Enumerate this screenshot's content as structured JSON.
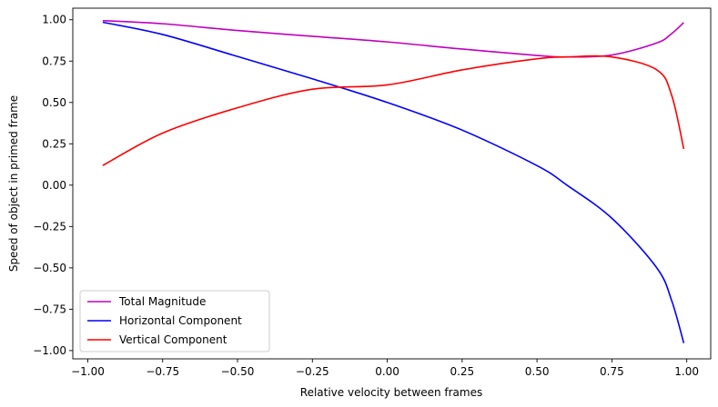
{
  "chart_data": {
    "type": "line",
    "xlabel": "Relative velocity between frames",
    "ylabel": "Speed of object in primed frame",
    "xlim": [
      -1.05,
      1.08
    ],
    "ylim": [
      -1.05,
      1.07
    ],
    "xticks": [
      -1.0,
      -0.75,
      -0.5,
      -0.25,
      0.0,
      0.25,
      0.5,
      0.75,
      1.0
    ],
    "xtick_labels": [
      "−1.00",
      "−0.75",
      "−0.50",
      "−0.25",
      "0.00",
      "0.25",
      "0.50",
      "0.75",
      "1.00"
    ],
    "yticks": [
      1.0,
      0.75,
      0.5,
      0.25,
      0.0,
      -0.25,
      -0.5,
      -0.75,
      -1.0
    ],
    "ytick_labels": [
      "1.00",
      "0.75",
      "0.50",
      "0.25",
      "0.00",
      "−0.25",
      "−0.50",
      "−0.75",
      "−1.00"
    ],
    "grid": false,
    "legend_position": "lower-left",
    "x": [
      -0.95,
      -0.75,
      -0.5,
      -0.25,
      0.0,
      0.25,
      0.5,
      0.6,
      0.75,
      0.9,
      0.95,
      0.99
    ],
    "series": [
      {
        "name": "Total Magnitude",
        "color": "#bf00bf",
        "values": [
          0.995,
          0.976,
          0.935,
          0.9,
          0.866,
          0.823,
          0.784,
          0.775,
          0.787,
          0.86,
          0.917,
          0.983
        ]
      },
      {
        "name": "Horizontal Component",
        "color": "#0000ff",
        "values": [
          0.985,
          0.911,
          0.778,
          0.643,
          0.5,
          0.333,
          0.118,
          0.0,
          -0.2,
          -0.5,
          -0.7,
          -0.955
        ]
      },
      {
        "name": "Vertical Component",
        "color": "#ff0000",
        "values": [
          0.119,
          0.315,
          0.468,
          0.58,
          0.606,
          0.697,
          0.764,
          0.775,
          0.775,
          0.697,
          0.541,
          0.219
        ]
      }
    ]
  }
}
